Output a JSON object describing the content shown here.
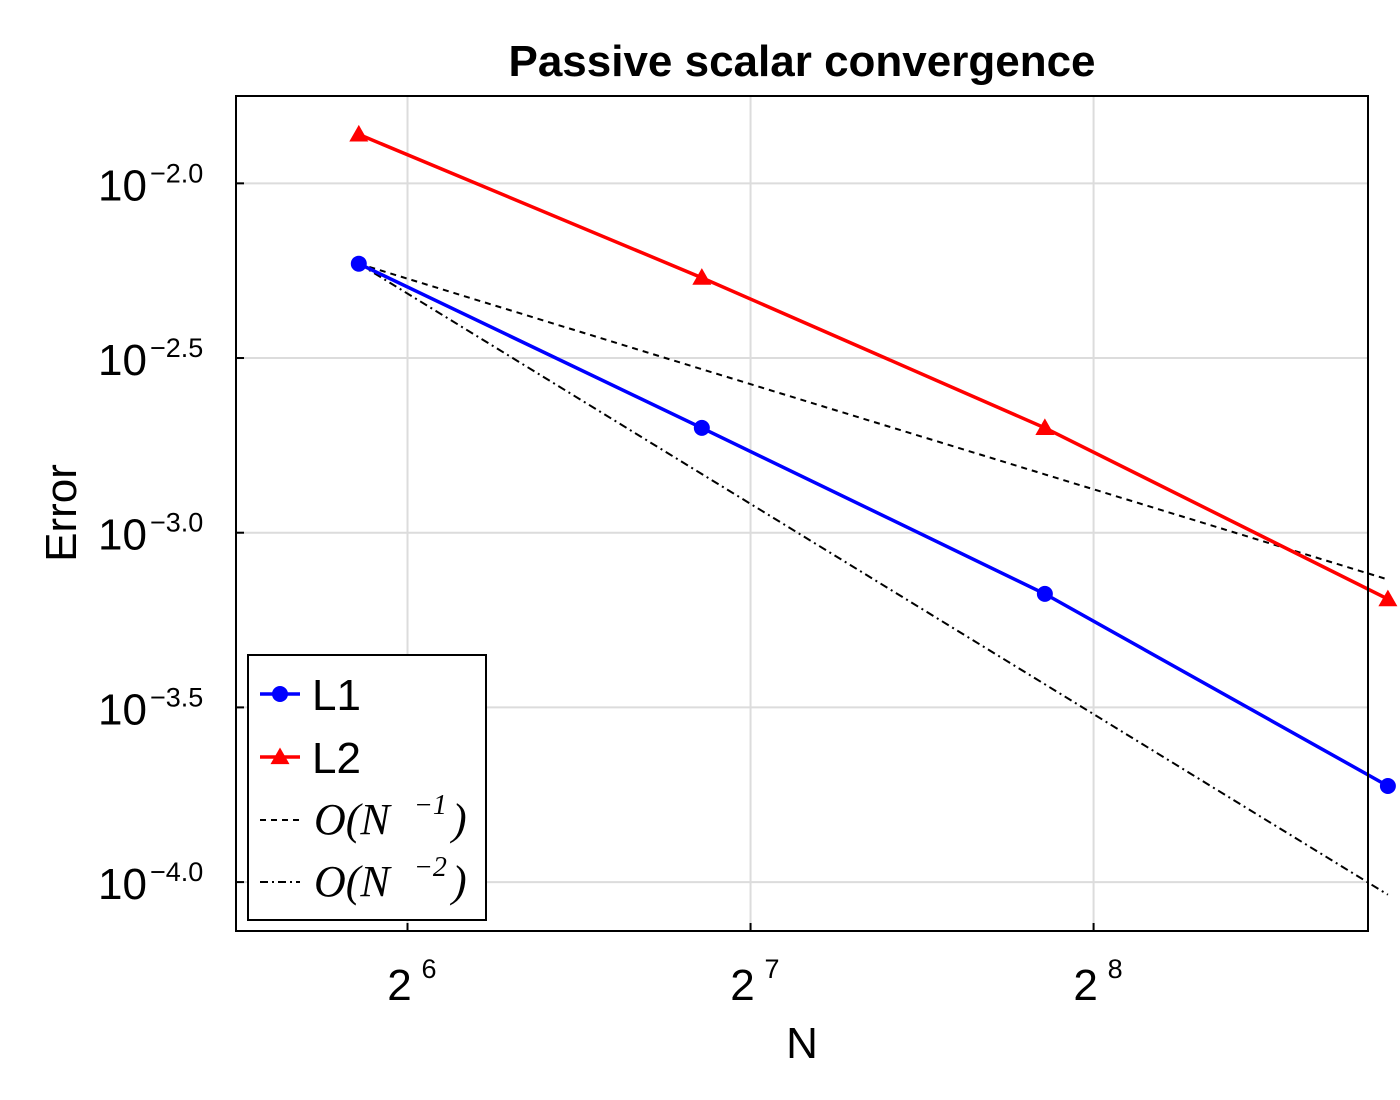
{
  "chart_data": {
    "type": "line",
    "title": "Passive scalar convergence",
    "xlabel": "N",
    "ylabel": "Error",
    "xscale": "log2",
    "yscale": "log10",
    "x": [
      58,
      116,
      232,
      464
    ],
    "xlim_log2": [
      5.5,
      8.8
    ],
    "ylim_log10": [
      -4.14,
      -1.75
    ],
    "x_ticks": [
      {
        "log2": 6,
        "base": "2",
        "exp": "6"
      },
      {
        "log2": 7,
        "base": "2",
        "exp": "7"
      },
      {
        "log2": 8,
        "base": "2",
        "exp": "8"
      }
    ],
    "y_ticks": [
      {
        "log10": -2.0,
        "base": "10",
        "exp": "−2.0"
      },
      {
        "log10": -2.5,
        "base": "10",
        "exp": "−2.5"
      },
      {
        "log10": -3.0,
        "base": "10",
        "exp": "−3.0"
      },
      {
        "log10": -3.5,
        "base": "10",
        "exp": "−3.5"
      },
      {
        "log10": -4.0,
        "base": "10",
        "exp": "−4.0"
      }
    ],
    "grid": true,
    "legend_position": "bottom-left",
    "series": [
      {
        "name": "L1",
        "color": "#0000ff",
        "marker": "circle",
        "style": "solid",
        "log10_values": [
          -2.23,
          -2.7,
          -3.175,
          -3.725
        ]
      },
      {
        "name": "L2",
        "color": "#ff0000",
        "marker": "triangle",
        "style": "solid",
        "log10_values": [
          -1.86,
          -2.27,
          -2.7,
          -3.19
        ]
      },
      {
        "name": "O(N^-1)",
        "color": "#000000",
        "marker": "none",
        "style": "dashed",
        "log10_values": [
          -2.23,
          -2.532,
          -2.833,
          -3.134
        ]
      },
      {
        "name": "O(N^-2)",
        "color": "#000000",
        "marker": "none",
        "style": "dashdot",
        "log10_values": [
          -2.23,
          -2.832,
          -3.434,
          -4.036
        ]
      }
    ],
    "legend": [
      {
        "label": "L1",
        "kind": "text"
      },
      {
        "label": "L2",
        "kind": "text"
      },
      {
        "label": "O(N",
        "sup": "−1",
        "tail": ")",
        "kind": "math"
      },
      {
        "label": "O(N",
        "sup": "−2",
        "tail": ")",
        "kind": "math"
      }
    ]
  }
}
